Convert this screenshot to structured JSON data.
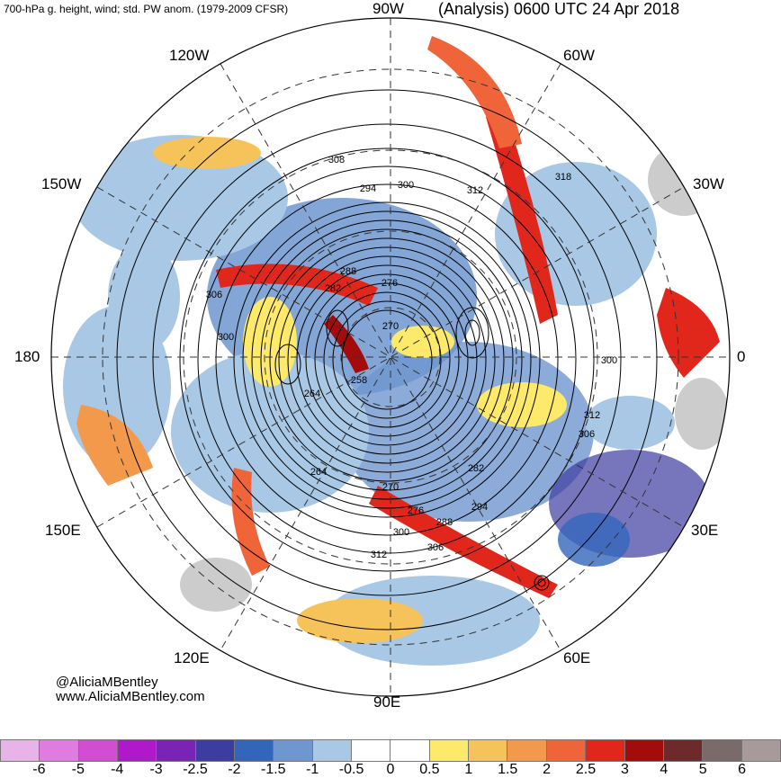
{
  "header": {
    "left": "700-hPa g. height, wind; std. PW anom. (1979-2009 CFSR)",
    "right": "(Analysis) 0600 UTC 24 Apr 2018"
  },
  "longitudes": [
    "90W",
    "60W",
    "30W",
    "0",
    "30E",
    "60E",
    "90E",
    "120E",
    "150E",
    "180",
    "150W",
    "120W"
  ],
  "height_labels": [
    "294",
    "300",
    "308",
    "312",
    "318",
    "288",
    "282",
    "276",
    "270",
    "306",
    "300",
    "264",
    "258",
    "300",
    "312",
    "306",
    "282",
    "294",
    "288",
    "276",
    "270",
    "264",
    "300",
    "306",
    "312"
  ],
  "credits": [
    "@AliciaMBentley",
    "www.AliciaMBentley.com"
  ],
  "colorbar": {
    "colors": [
      "#e8b4e8",
      "#e07be0",
      "#d24dd2",
      "#b019c9",
      "#7a24b5",
      "#3d3ca0",
      "#3366bb",
      "#6f96cf",
      "#a8c8e6",
      "#ffffff",
      "#ffffff",
      "#fde96a",
      "#f5c35a",
      "#f3994b",
      "#f0643a",
      "#e1261c",
      "#a40c0c",
      "#6e2a2a",
      "#7a6a6a",
      "#a89a9a"
    ],
    "ticks": [
      "-6",
      "-5",
      "-4",
      "-3",
      "-2.5",
      "-2",
      "-1.5",
      "-1",
      "-0.5",
      "0",
      "0.5",
      "1",
      "1.5",
      "2",
      "2.5",
      "3",
      "4",
      "5",
      "6"
    ]
  }
}
